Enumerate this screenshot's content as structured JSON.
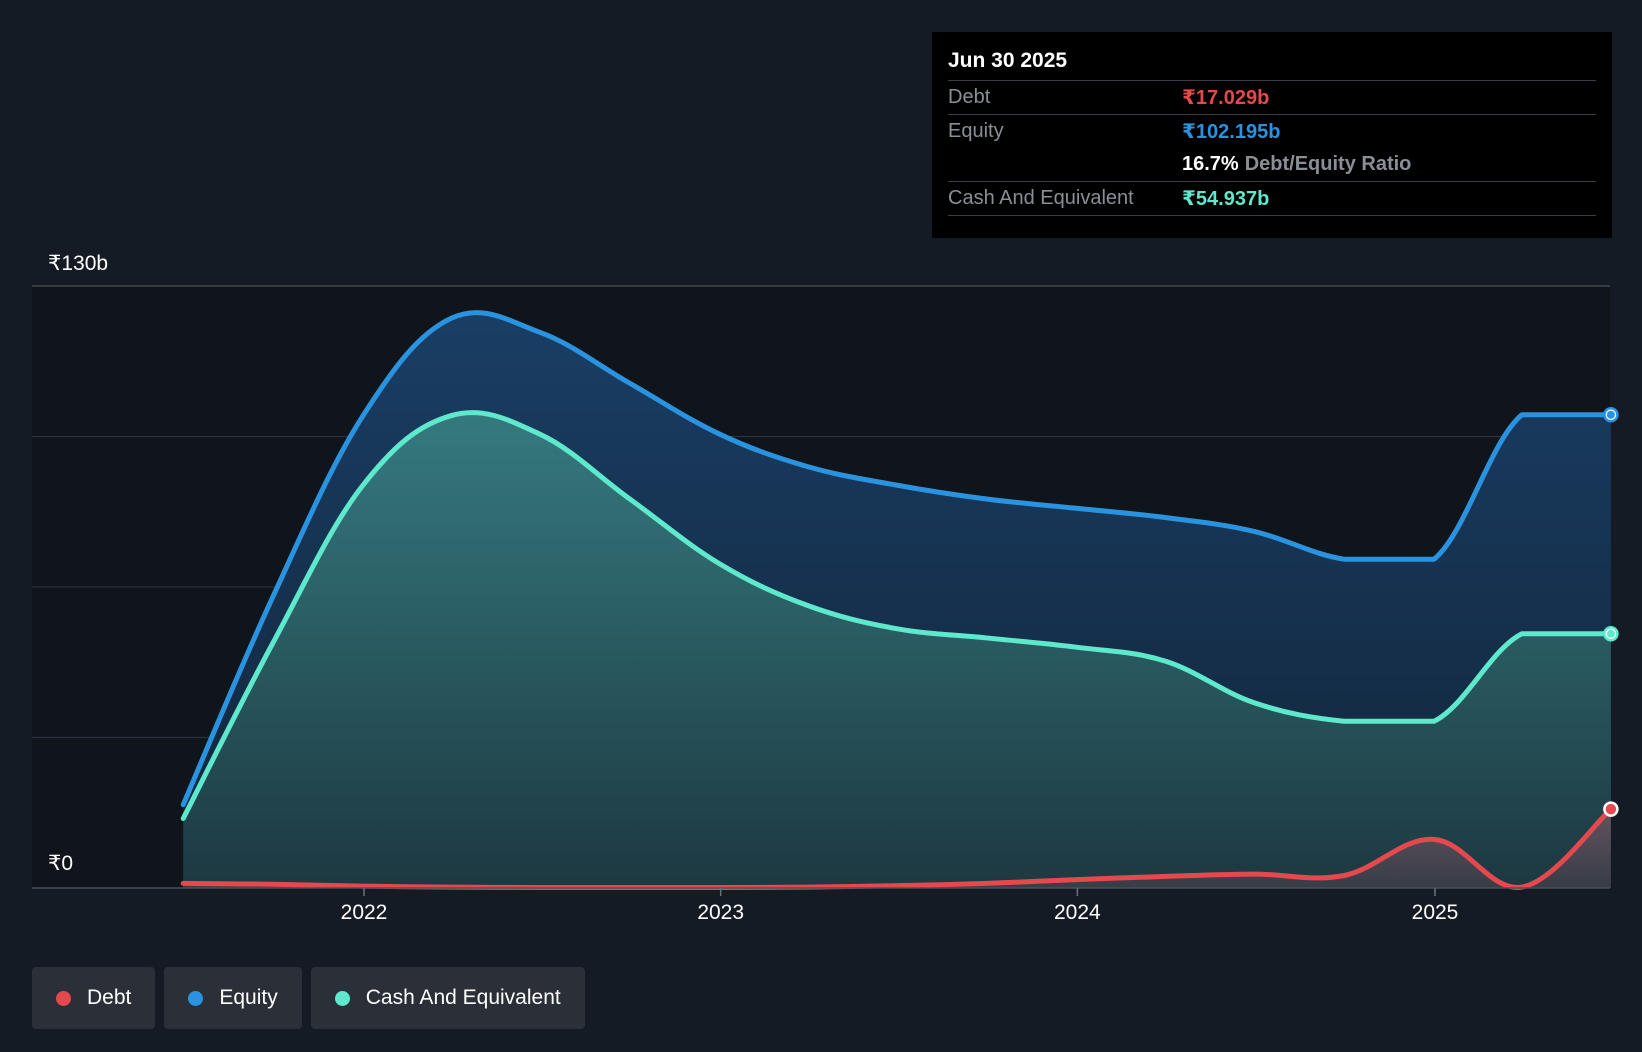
{
  "chart_data": {
    "type": "area",
    "y_axis": {
      "top_label": "₹130b",
      "bottom_label": "₹0",
      "ylim": [
        0,
        130
      ]
    },
    "x_ticks": [
      "2022",
      "2023",
      "2024",
      "2025"
    ],
    "series": [
      {
        "name": "Equity",
        "color": "#2a93e0",
        "points": [
          [
            "2021-06-30",
            18
          ],
          [
            "2021-09-30",
            63
          ],
          [
            "2021-12-31",
            102
          ],
          [
            "2022-03-31",
            123
          ],
          [
            "2022-06-30",
            120
          ],
          [
            "2022-09-30",
            109
          ],
          [
            "2022-12-31",
            98
          ],
          [
            "2023-03-31",
            91
          ],
          [
            "2023-06-30",
            87
          ],
          [
            "2023-09-30",
            84
          ],
          [
            "2023-12-31",
            82
          ],
          [
            "2024-03-31",
            80
          ],
          [
            "2024-06-30",
            77
          ],
          [
            "2024-09-30",
            71
          ],
          [
            "2024-12-31",
            71
          ],
          [
            "2025-03-31",
            102.2
          ],
          [
            "2025-06-30",
            102.2
          ]
        ]
      },
      {
        "name": "Cash And Equivalent",
        "color": "#5ee8cc",
        "points": [
          [
            "2021-06-30",
            15
          ],
          [
            "2021-09-30",
            53
          ],
          [
            "2021-12-31",
            87
          ],
          [
            "2022-03-31",
            102
          ],
          [
            "2022-06-30",
            98
          ],
          [
            "2022-09-30",
            84
          ],
          [
            "2022-12-31",
            70
          ],
          [
            "2023-03-31",
            61
          ],
          [
            "2023-06-30",
            56
          ],
          [
            "2023-09-30",
            54
          ],
          [
            "2023-12-31",
            52
          ],
          [
            "2024-03-31",
            49
          ],
          [
            "2024-06-30",
            40
          ],
          [
            "2024-09-30",
            36
          ],
          [
            "2024-12-31",
            36
          ],
          [
            "2025-03-31",
            54.9
          ],
          [
            "2025-06-30",
            54.9
          ]
        ]
      },
      {
        "name": "Debt",
        "color": "#e5484d",
        "points": [
          [
            "2021-06-30",
            1
          ],
          [
            "2021-09-30",
            0.8
          ],
          [
            "2021-12-31",
            0.4
          ],
          [
            "2022-03-31",
            0.2
          ],
          [
            "2022-06-30",
            0.1
          ],
          [
            "2022-09-30",
            0.1
          ],
          [
            "2022-12-31",
            0.1
          ],
          [
            "2023-03-31",
            0.2
          ],
          [
            "2023-06-30",
            0.5
          ],
          [
            "2023-09-30",
            1
          ],
          [
            "2023-12-31",
            1.8
          ],
          [
            "2024-03-31",
            2.5
          ],
          [
            "2024-06-30",
            3
          ],
          [
            "2024-09-30",
            2.7
          ],
          [
            "2024-12-31",
            10.5
          ],
          [
            "2025-03-31",
            0.2
          ],
          [
            "2025-06-30",
            17.03
          ]
        ]
      }
    ],
    "grid": true,
    "legend_placement": "bottom-left"
  },
  "tooltip": {
    "date": "Jun 30 2025",
    "debt_label": "Debt",
    "debt_value": "₹17.029b",
    "equity_label": "Equity",
    "equity_value": "₹102.195b",
    "ratio_value": "16.7%",
    "ratio_label": "Debt/Equity Ratio",
    "cash_label": "Cash And Equivalent",
    "cash_value": "₹54.937b"
  },
  "legend": {
    "debt": "Debt",
    "equity": "Equity",
    "cash": "Cash And Equivalent"
  },
  "colors": {
    "background": "#151b24",
    "plot_background": "#10151c",
    "debt": "#e5484d",
    "equity": "#2a93e0",
    "cash": "#5ee8cc"
  }
}
